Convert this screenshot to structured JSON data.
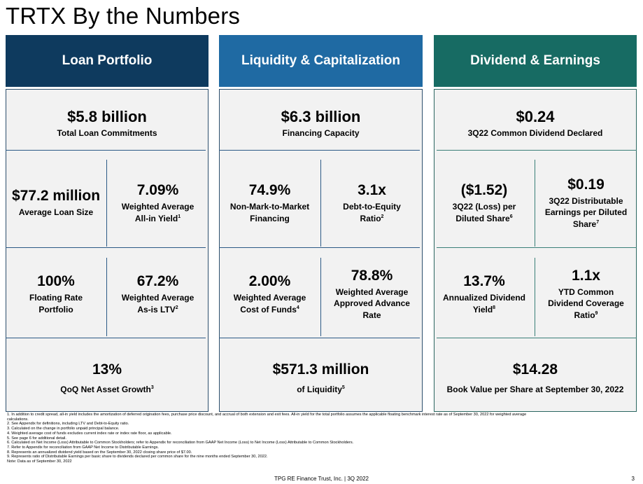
{
  "page_title": "TRTX By the Numbers",
  "colors": {
    "loan_header": "#0e3a5e",
    "liquidity_header": "#1f6aa3",
    "dividend_header": "#176b63",
    "divider_blue": "#2c5a86",
    "divider_teal": "#3a7f78",
    "panel_bg": "#f2f2f2"
  },
  "loan": {
    "header": "Loan Portfolio",
    "top": {
      "value": "$5.8 billion",
      "label": "Total Loan Commitments"
    },
    "r1": [
      {
        "value": "$77.2 million",
        "label": "Average Loan Size"
      },
      {
        "value": "7.09%",
        "label1": "Weighted Average",
        "label2": "All-in Yield",
        "sup": "1"
      }
    ],
    "r2": [
      {
        "value": "100%",
        "label1": "Floating Rate",
        "label2": "Portfolio"
      },
      {
        "value": "67.2%",
        "label1": "Weighted Average",
        "label2": "As-is LTV",
        "sup": "2"
      }
    ],
    "bottom": {
      "value": "13%",
      "label": "QoQ Net Asset Growth",
      "sup": "3"
    }
  },
  "liq": {
    "header": "Liquidity & Capitalization",
    "top": {
      "value": "$6.3 billion",
      "label": "Financing Capacity"
    },
    "r1": [
      {
        "value": "74.9%",
        "label1": "Non-Mark-to-Market",
        "label2": "Financing"
      },
      {
        "value": "3.1x",
        "label1": "Debt-to-Equity",
        "label2": "Ratio",
        "sup": "2"
      }
    ],
    "r2": [
      {
        "value": "2.00%",
        "label1": "Weighted Average",
        "label2": "Cost of Funds",
        "sup": "4"
      },
      {
        "value": "78.8%",
        "label1": "Weighted Average",
        "label2": "Approved Advance",
        "label3": "Rate"
      }
    ],
    "bottom": {
      "value": "$571.3 million",
      "label": "of Liquidity",
      "sup": "5"
    }
  },
  "div": {
    "header": "Dividend & Earnings",
    "top": {
      "value": "$0.24",
      "label": "3Q22 Common Dividend Declared"
    },
    "r1": [
      {
        "value": "($1.52)",
        "label1": "3Q22 (Loss) per",
        "label2": "Diluted Share",
        "sup": "6"
      },
      {
        "value": "$0.19",
        "label1": "3Q22 Distributable",
        "label2": "Earnings per Diluted",
        "label3": "Share",
        "sup": "7"
      }
    ],
    "r2": [
      {
        "value": "13.7%",
        "label1": "Annualized Dividend",
        "label2": "Yield",
        "sup": "8"
      },
      {
        "value": "1.1x",
        "label1": "YTD Common",
        "label2": "Dividend Coverage",
        "label3": "Ratio",
        "sup": "9"
      }
    ],
    "bottom": {
      "value": "$14.28",
      "label": "Book Value per Share at September 30, 2022"
    }
  },
  "footnotes": [
    "1. In addition to credit spread, all-in yield includes the amortization of deferred origination fees, purchase price discount, and accrual of both extension and exit fees. All-in yield for the total portfolio assumes the applicable floating benchmark interest rate as of September 30, 2022 for weighted average",
    "calculations.",
    "2. See Appendix for definitions, including LTV and Debt-to-Equity ratio.",
    "3. Calculated on the change in portfolio unpaid principal balance.",
    "4. Weighted average cost of funds excludes current index rate or index rate floor, as applicable.",
    "5. See page 6 for additional detail.",
    "6. Calculated on Net Income (Loss) Attributable to Common Stockholders; refer to Appendix for reconciliation from GAAP Net Income (Loss) to Net Income (Loss) Attributable to Common Stockholders.",
    "7. Refer to Appendix for reconciliation from GAAP Net Income to Distributable Earnings.",
    "8. Represents an annualized dividend yield based on the September 30, 2022 closing share price of $7.00.",
    "9. Represents ratio of Distributable Earnings per basic share to dividends declared per common share for the nine months ended September 30, 2022.",
    "Note: Data as of September 30, 2022"
  ],
  "footer": "TPG RE Finance Trust, Inc. | 3Q 2022",
  "page_number": "3"
}
